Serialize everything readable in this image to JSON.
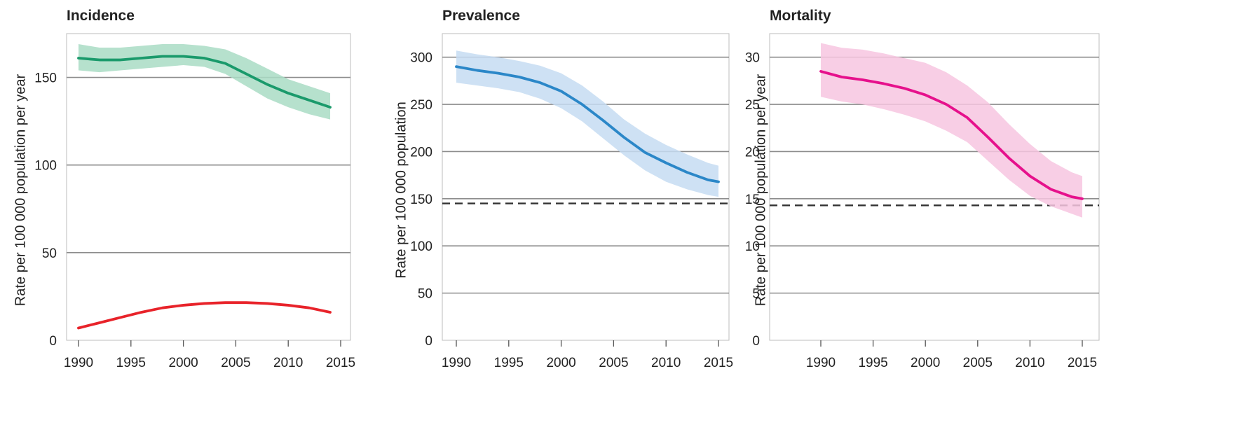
{
  "chart_data": [
    {
      "type": "line",
      "title": "Incidence",
      "xlabel": "",
      "ylabel": "Rate per 100 000 population per year",
      "xlim": [
        1990,
        2015
      ],
      "ylim": [
        0,
        175
      ],
      "xticks": [
        1990,
        1995,
        2000,
        2005,
        2010,
        2015
      ],
      "yticks": [
        0,
        50,
        100,
        150
      ],
      "grid": "horizontal",
      "series": [
        {
          "color": "#1a9a6b",
          "band_color": "#a9dcc4",
          "x": [
            1990,
            1992,
            1994,
            1996,
            1998,
            2000,
            2002,
            2004,
            2006,
            2008,
            2010,
            2012,
            2014
          ],
          "y": [
            161,
            160,
            160,
            161,
            162,
            162,
            161,
            158,
            152,
            146,
            141,
            137,
            133
          ],
          "lower": [
            154,
            153,
            154,
            155,
            156,
            157,
            156,
            152,
            145,
            138,
            133,
            129,
            126
          ],
          "upper": [
            169,
            167,
            167,
            168,
            169,
            169,
            168,
            166,
            161,
            155,
            149,
            145,
            141
          ]
        },
        {
          "color": "#e8232a",
          "x": [
            1990,
            1992,
            1994,
            1996,
            1998,
            2000,
            2002,
            2004,
            2006,
            2008,
            2010,
            2012,
            2014
          ],
          "y": [
            7,
            10,
            13,
            16,
            18.5,
            20,
            21,
            21.5,
            21.5,
            21,
            20,
            18.5,
            16
          ]
        }
      ]
    },
    {
      "type": "line",
      "title": "Prevalence",
      "xlabel": "",
      "ylabel": "Rate per 100 000 population",
      "xlim": [
        1990,
        2015
      ],
      "ylim": [
        0,
        325
      ],
      "xticks": [
        1990,
        1995,
        2000,
        2005,
        2010,
        2015
      ],
      "yticks": [
        0,
        50,
        100,
        150,
        200,
        250,
        300
      ],
      "grid": "horizontal",
      "target": 145,
      "series": [
        {
          "color": "#2b87c8",
          "band_color": "#c5dcf2",
          "x": [
            1990,
            1992,
            1994,
            1996,
            1998,
            2000,
            2002,
            2004,
            2006,
            2008,
            2010,
            2012,
            2014,
            2015
          ],
          "y": [
            290,
            286,
            283,
            279,
            273,
            264,
            250,
            233,
            215,
            199,
            188,
            178,
            170,
            168
          ],
          "lower": [
            273,
            270,
            267,
            263,
            256,
            246,
            232,
            214,
            196,
            180,
            168,
            160,
            154,
            152
          ],
          "upper": [
            307,
            303,
            300,
            296,
            291,
            283,
            270,
            253,
            234,
            219,
            207,
            197,
            188,
            185
          ]
        }
      ]
    },
    {
      "type": "line",
      "title": "Mortality",
      "xlabel": "",
      "ylabel": "Rate per 100 000 population per year",
      "xlim": [
        1990,
        2015
      ],
      "ylim": [
        0,
        32.5
      ],
      "xticks": [
        1990,
        1995,
        2000,
        2005,
        2010,
        2015
      ],
      "yticks": [
        0,
        5,
        10,
        15,
        20,
        25,
        30
      ],
      "grid": "horizontal",
      "target": 14.3,
      "series": [
        {
          "color": "#e6118c",
          "band_color": "#f7c6e0",
          "x": [
            1990,
            1992,
            1994,
            1996,
            1998,
            2000,
            2002,
            2004,
            2006,
            2008,
            2010,
            2012,
            2014,
            2015
          ],
          "y": [
            28.5,
            27.9,
            27.6,
            27.2,
            26.7,
            26.0,
            25.0,
            23.6,
            21.5,
            19.3,
            17.4,
            16.0,
            15.2,
            15.0
          ],
          "lower": [
            25.8,
            25.3,
            25.0,
            24.5,
            23.9,
            23.2,
            22.2,
            21.0,
            19.0,
            17.0,
            15.3,
            14.2,
            13.4,
            13.0
          ],
          "upper": [
            31.5,
            31.0,
            30.8,
            30.4,
            29.9,
            29.4,
            28.4,
            27.0,
            25.2,
            22.9,
            20.8,
            19.0,
            17.8,
            17.4
          ]
        }
      ]
    }
  ]
}
